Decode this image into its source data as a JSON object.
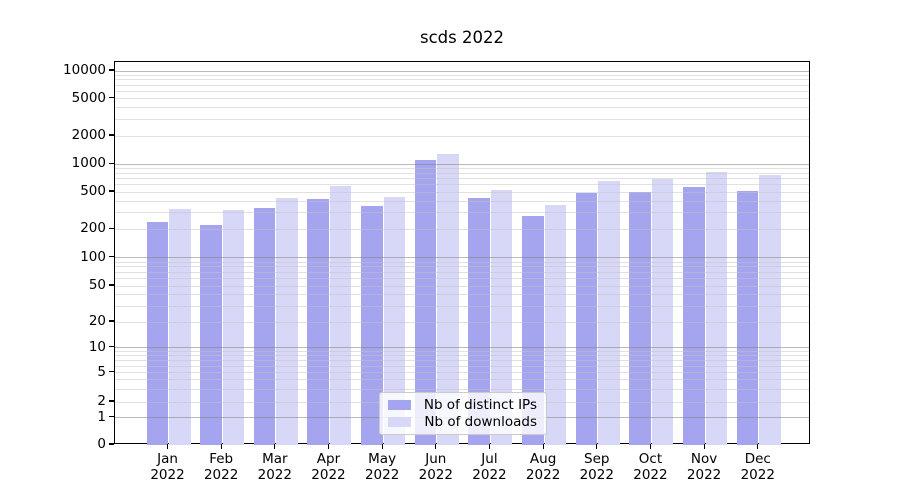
{
  "chart_data": {
    "type": "bar",
    "title": "scds 2022",
    "categories": [
      "Jan 2022",
      "Feb 2022",
      "Mar 2022",
      "Apr 2022",
      "May 2022",
      "Jun 2022",
      "Jul 2022",
      "Aug 2022",
      "Sep 2022",
      "Oct 2022",
      "Nov 2022",
      "Dec 2022"
    ],
    "series": [
      {
        "name": "Nb of distinct IPs",
        "color": "#a5a5ef",
        "values": [
          240,
          222,
          340,
          424,
          354,
          1110,
          428,
          280,
          486,
          500,
          570,
          512
        ]
      },
      {
        "name": "Nb of downloads",
        "color": "#d7d7f8",
        "values": [
          328,
          318,
          436,
          580,
          446,
          1280,
          524,
          366,
          656,
          684,
          822,
          774
        ]
      }
    ],
    "xlabel": "",
    "ylabel": "",
    "yscale": "asinh-log (linear 0-1, log-like above)",
    "ylim": [
      0,
      12500
    ],
    "ytick_values": [
      0,
      1,
      2,
      5,
      10,
      20,
      50,
      100,
      200,
      500,
      1000,
      2000,
      5000,
      10000
    ],
    "ytick_labels": [
      "0",
      "1",
      "2",
      "5",
      "10",
      "20",
      "50",
      "100",
      "200",
      "500",
      "1000",
      "2000",
      "5000",
      "10000"
    ],
    "grid": "on (major darker at powers of 10, light minors between)",
    "legend_position": "lower center inside plot"
  }
}
